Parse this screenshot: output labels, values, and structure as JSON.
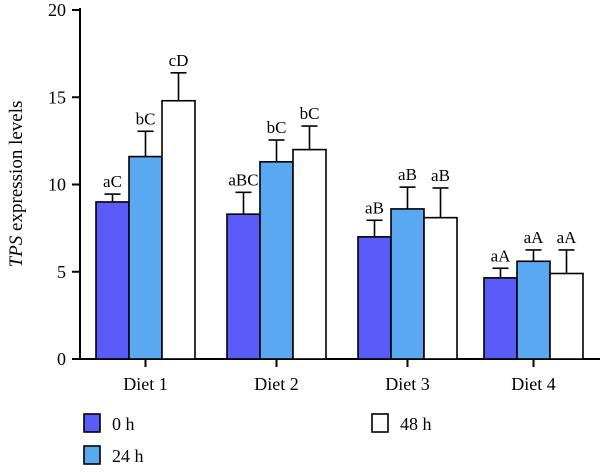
{
  "chart_data": {
    "type": "bar",
    "title": "",
    "xlabel": "",
    "ylabel": {
      "italic": "TPS",
      "rest": " expression levels"
    },
    "ylim": [
      0,
      20
    ],
    "yticks": [
      "0",
      "5",
      "10",
      "15",
      "20"
    ],
    "categories": [
      "Diet 1",
      "Diet 2",
      "Diet 3",
      "Diet 4"
    ],
    "series": [
      {
        "name": "0 h",
        "color": "#5b5bf7",
        "values": [
          9.0,
          8.3,
          7.0,
          4.65
        ],
        "errors": [
          0.45,
          1.25,
          0.95,
          0.55
        ],
        "sig_labels": [
          "aC",
          "aBC",
          "aB",
          "aA"
        ]
      },
      {
        "name": "24 h",
        "color": "#5aa7f2",
        "values": [
          11.6,
          11.3,
          8.6,
          5.6
        ],
        "errors": [
          1.45,
          1.25,
          1.25,
          0.65
        ],
        "sig_labels": [
          "bC",
          "bC",
          "aB",
          "aA"
        ]
      },
      {
        "name": "48 h",
        "color": "#ffffff",
        "values": [
          14.8,
          12.0,
          8.1,
          4.9
        ],
        "errors": [
          1.6,
          1.35,
          1.7,
          1.35
        ],
        "sig_labels": [
          "cD",
          "bC",
          "aB",
          "aA"
        ]
      }
    ],
    "legend_placement": "bottom",
    "grid": false
  }
}
